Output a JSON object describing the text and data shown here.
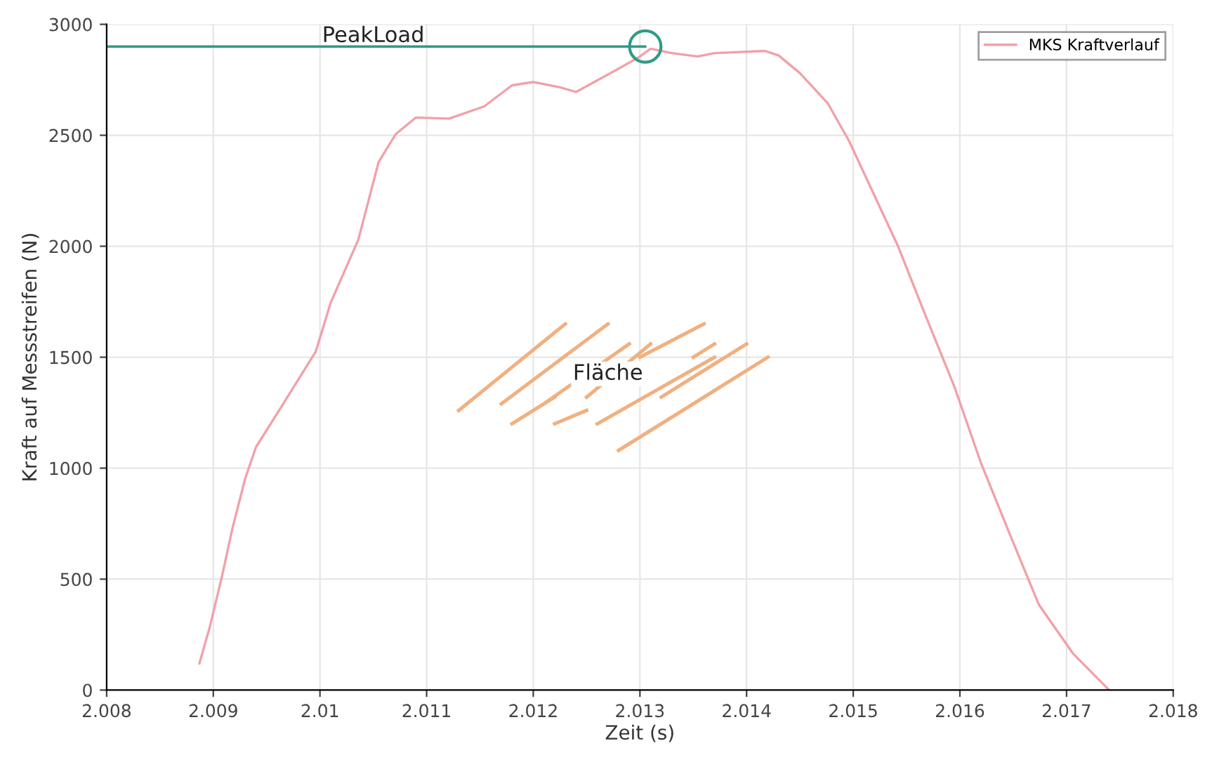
{
  "chart_data": {
    "type": "line",
    "xlabel": "Zeit (s)",
    "ylabel": "Kraft auf Messstreifen (N)",
    "xlim": [
      2.008,
      2.018
    ],
    "xticks": [
      2.008,
      2.009,
      2.01,
      2.011,
      2.012,
      2.013,
      2.014,
      2.015,
      2.016,
      2.017,
      2.018
    ],
    "ylim": [
      0,
      3000
    ],
    "yticks": [
      0,
      500,
      1000,
      1500,
      2000,
      2500,
      3000
    ],
    "grid": true,
    "legend": "top right",
    "series": [
      {
        "name": "MKS Kraftverlauf",
        "color": "#f2a0a8",
        "marker": "none",
        "x": [
          2.00887,
          2.00897,
          2.00908,
          2.00918,
          2.0093,
          2.0094,
          2.00963,
          2.00996,
          2.0101,
          2.01036,
          2.01055,
          2.01071,
          2.0109,
          2.01121,
          2.01154,
          2.0118,
          2.012,
          2.01226,
          2.0124,
          2.0128,
          2.013,
          2.0131,
          2.0133,
          2.01354,
          2.0137,
          2.01417,
          2.0143,
          2.0145,
          2.01476,
          2.01496,
          2.01542,
          2.01568,
          2.01595,
          2.0162,
          2.01647,
          2.01674,
          2.01706,
          2.0174
        ],
        "values": [
          120,
          290,
          510,
          730,
          955,
          1095,
          1270,
          1525,
          1745,
          2030,
          2380,
          2505,
          2580,
          2575,
          2630,
          2725,
          2740,
          2715,
          2695,
          2800,
          2855,
          2890,
          2870,
          2855,
          2870,
          2880,
          2860,
          2780,
          2645,
          2475,
          2000,
          1685,
          1365,
          1020,
          700,
          385,
          165,
          0
        ]
      },
      {
        "color": "#2e9c84",
        "marker": "none",
        "x": [
          2.008,
          2.01305
        ],
        "values": [
          2900,
          2900
        ]
      },
      {
        "type": "scatter",
        "color": "#2e9c84",
        "marker": "circle",
        "x": [
          2.01305
        ],
        "values": [
          2900
        ]
      }
    ],
    "annotations": [
      {
        "text": "PeakLoad",
        "x": 2.0105,
        "y": 2900
      },
      "Fläche"
    ]
  }
}
